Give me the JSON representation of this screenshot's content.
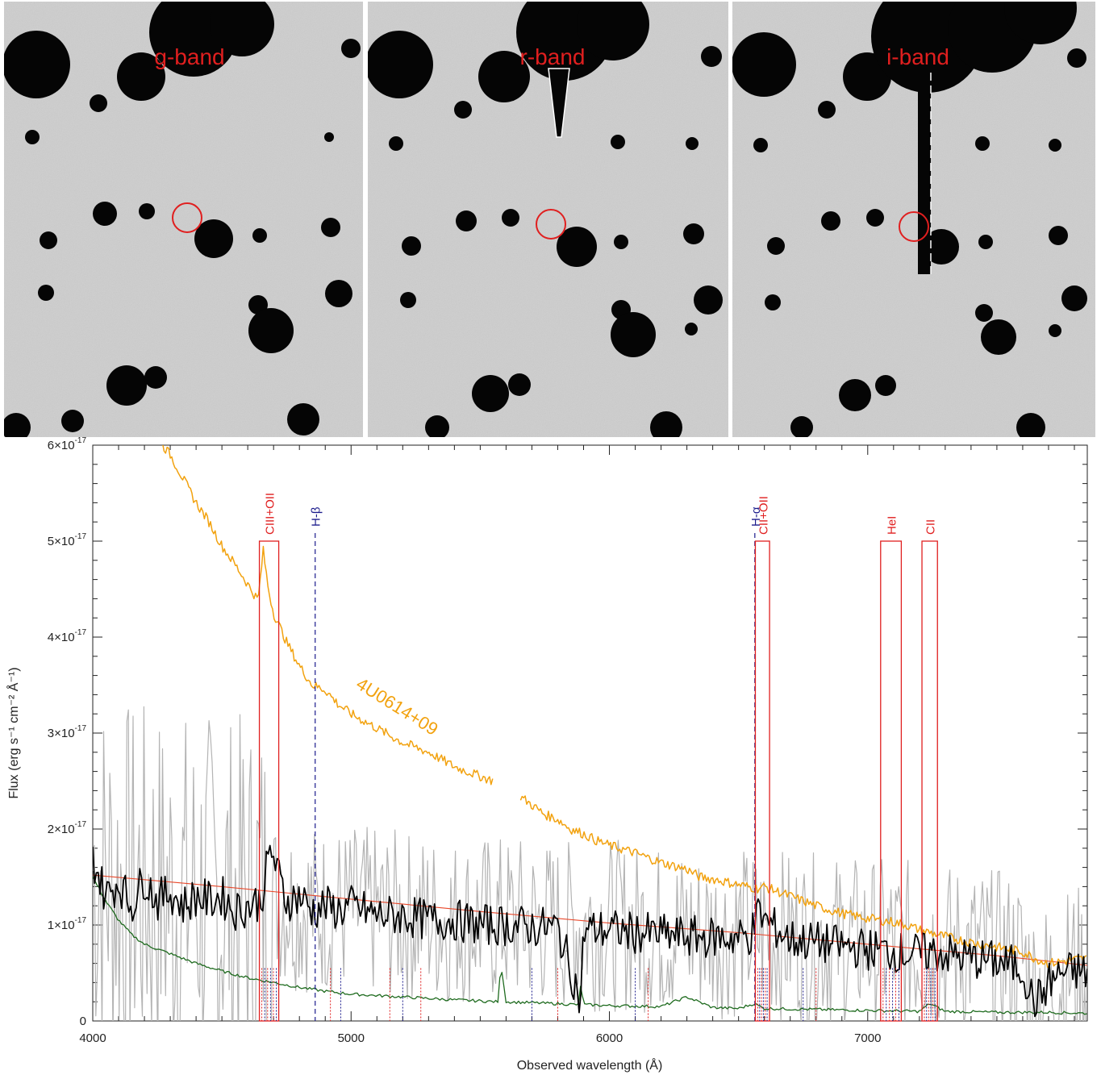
{
  "figure": {
    "panels": [
      {
        "band_label": "g-band"
      },
      {
        "band_label": "r-band"
      },
      {
        "band_label": "i-band"
      }
    ]
  },
  "colors": {
    "marker_circle": "#e01f1f",
    "panel_label": "#e01f1f",
    "reference_spectrum": "#f2a20f",
    "observed_smoothed": "#000000",
    "observed_raw": "#b4b4b4",
    "sky": "#1f6b1f",
    "continuum_fit": "#e8472a",
    "carbon_oxygen_lines": "#e01f1f",
    "hydrogen_lines": "#1b1b8c"
  },
  "chart_data": {
    "type": "line",
    "xlabel": "Observed wavelength (Å)",
    "ylabel": "Flux (erg s⁻¹ cm⁻² Å⁻¹)",
    "xlim": [
      4000,
      7850
    ],
    "ylim": [
      0,
      6e-17
    ],
    "x_ticks": [
      4000,
      5000,
      6000,
      7000
    ],
    "x_tick_labels": [
      "4000",
      "5000",
      "6000",
      "7000"
    ],
    "y_ticks": [
      0,
      1e-17,
      2e-17,
      3e-17,
      4e-17,
      5e-17,
      6e-17
    ],
    "y_tick_labels": [
      {
        "mantissa": "0",
        "exp": ""
      },
      {
        "mantissa": "1×10",
        "exp": "-17"
      },
      {
        "mantissa": "2×10",
        "exp": "-17"
      },
      {
        "mantissa": "3×10",
        "exp": "-17"
      },
      {
        "mantissa": "4×10",
        "exp": "-17"
      },
      {
        "mantissa": "5×10",
        "exp": "-17"
      },
      {
        "mantissa": "6×10",
        "exp": "-17"
      }
    ],
    "series_annotation": "4U0614+09",
    "series": [
      {
        "name": "4U0614+09",
        "style": "reference",
        "x": [
          4270,
          4300,
          4350,
          4400,
          4450,
          4500,
          4560,
          4600,
          4640,
          4660,
          4680,
          4700,
          4750,
          4800,
          4850,
          4900,
          4950,
          5000,
          5100,
          5200,
          5300,
          5400,
          5500,
          5550,
          5600,
          5650,
          5700,
          5750,
          5800,
          5850,
          5900,
          5950,
          6000,
          6100,
          6200,
          6300,
          6350,
          6400,
          6500,
          6570,
          6600,
          6700,
          6800,
          6900,
          7000,
          7100,
          7150,
          7200,
          7300,
          7400,
          7500,
          7600,
          7650,
          7700,
          7750,
          7800,
          7850
        ],
        "y": [
          6e-17,
          5.9e-17,
          5.65e-17,
          5.4e-17,
          5.2e-17,
          4.95e-17,
          4.72e-17,
          4.55e-17,
          4.38e-17,
          4.9e-17,
          4.5e-17,
          4.25e-17,
          3.95e-17,
          3.7e-17,
          3.5e-17,
          3.45e-17,
          3.3e-17,
          3.2e-17,
          3.05e-17,
          2.9e-17,
          2.8e-17,
          2.65e-17,
          2.55e-17,
          2.5e-17,
          null,
          2.35e-17,
          2.25e-17,
          2.15e-17,
          2.1e-17,
          2e-17,
          1.95e-17,
          1.88e-17,
          1.83e-17,
          1.75e-17,
          1.65e-17,
          1.58e-17,
          1.5e-17,
          1.48e-17,
          1.42e-17,
          1.38e-17,
          1.4e-17,
          1.3e-17,
          1.2e-17,
          1.12e-17,
          1.07e-17,
          1.03e-17,
          1e-17,
          9.5e-18,
          8.8e-18,
          8.2e-18,
          7.7e-18,
          7.2e-18,
          6.5e-18,
          6e-18,
          6.2e-18,
          6.4e-18,
          6.5e-18
        ]
      },
      {
        "name": "",
        "style": "raw",
        "x": [
          4000,
          4100,
          4200,
          4300,
          4400,
          4500,
          4600,
          4700,
          4800,
          4900,
          5000,
          5200,
          5400,
          5600,
          5800,
          6000,
          6200,
          6400,
          6600,
          6800,
          7000,
          7200,
          7400,
          7600,
          7650,
          7700,
          7800,
          7850
        ],
        "y": [
          1.6e-17,
          1.4e-17,
          1.35e-17,
          1.3e-17,
          1.3e-17,
          1.25e-17,
          1.25e-17,
          1.3e-17,
          1.2e-17,
          1.15e-17,
          1.15e-17,
          1.1e-17,
          1.05e-17,
          1.05e-17,
          1e-17,
          1e-17,
          9.5e-18,
          9.2e-18,
          9.2e-18,
          8.5e-18,
          8.2e-18,
          7.8e-18,
          7.4e-18,
          6.5e-18,
          3e-18,
          4e-18,
          5.5e-18,
          5e-18
        ]
      },
      {
        "name": "",
        "style": "smoothed",
        "x": [
          4000,
          4050,
          4100,
          4150,
          4200,
          4250,
          4300,
          4350,
          4400,
          4450,
          4500,
          4550,
          4600,
          4650,
          4690,
          4720,
          4750,
          4800,
          4850,
          4900,
          4950,
          5000,
          5100,
          5200,
          5300,
          5400,
          5500,
          5600,
          5700,
          5800,
          5890,
          5900,
          6000,
          6100,
          6200,
          6300,
          6400,
          6500,
          6550,
          6580,
          6600,
          6700,
          6800,
          6900,
          7000,
          7100,
          7200,
          7250,
          7300,
          7400,
          7500,
          7600,
          7640,
          7670,
          7700,
          7750,
          7800,
          7850
        ],
        "y": [
          1.7e-17,
          1.3e-17,
          1.45e-17,
          1.2e-17,
          1.5e-17,
          1.25e-17,
          1.35e-17,
          1.2e-17,
          1.3e-17,
          1.25e-17,
          1.3e-17,
          1.15e-17,
          1.2e-17,
          1.25e-17,
          1.8e-17,
          1.5e-17,
          1.25e-17,
          1.3e-17,
          1.15e-17,
          1.2e-17,
          1.15e-17,
          1.2e-17,
          1.1e-17,
          1.1e-17,
          1.05e-17,
          1.05e-17,
          1e-17,
          1e-17,
          9.8e-18,
          9.7e-18,
          2e-18,
          9.5e-18,
          9.5e-18,
          9.2e-18,
          9e-18,
          8.8e-18,
          8.7e-18,
          8.7e-18,
          9e-18,
          1.15e-17,
          1.05e-17,
          8.5e-18,
          8.2e-18,
          7.8e-18,
          7.5e-18,
          7.2e-18,
          7e-18,
          7.2e-18,
          7e-18,
          6.5e-18,
          6.2e-18,
          5.5e-18,
          2e-18,
          2.5e-18,
          4e-18,
          5e-18,
          5.2e-18,
          5e-18
        ]
      },
      {
        "name": "",
        "style": "sky",
        "x": [
          4000,
          4050,
          4100,
          4150,
          4200,
          4300,
          4400,
          4500,
          4600,
          4700,
          4800,
          4900,
          5000,
          5200,
          5400,
          5570,
          5580,
          5600,
          5800,
          5880,
          5890,
          5900,
          6000,
          6200,
          6300,
          6400,
          6500,
          6560,
          6600,
          6800,
          7000,
          7200,
          7240,
          7300,
          7500,
          7700,
          7850
        ],
        "y": [
          1.5e-17,
          1.25e-17,
          1.05e-17,
          9e-18,
          8e-18,
          7e-18,
          6e-18,
          5.2e-18,
          4.5e-18,
          4e-18,
          3.5e-18,
          3.1e-18,
          2.8e-18,
          2.5e-18,
          2.2e-18,
          2e-18,
          6e-18,
          2e-18,
          1.8e-18,
          1.7e-18,
          4e-18,
          1.7e-18,
          1.6e-18,
          1.5e-18,
          2.5e-18,
          1.4e-18,
          1.3e-18,
          1.8e-18,
          1.3e-18,
          1.2e-18,
          1.1e-18,
          1e-18,
          1.8e-18,
          1e-18,
          9e-19,
          9e-19,
          8e-19
        ]
      },
      {
        "name": "",
        "style": "fit",
        "x": [
          4000,
          4500,
          5000,
          5500,
          6000,
          6500,
          7000,
          7500,
          7850
        ],
        "y": [
          1.52e-17,
          1.4e-17,
          1.27e-17,
          1.14e-17,
          1.02e-17,
          9.2e-18,
          8e-18,
          6.8e-18,
          5.8e-18
        ]
      }
    ],
    "line_markers": [
      {
        "label": "CIII+OII",
        "x_start": 4645,
        "x_end": 4720,
        "type": "box"
      },
      {
        "label": "H-β",
        "x": 4861,
        "type": "dashed"
      },
      {
        "label": "H-α",
        "x": 6563,
        "type": "dashed"
      },
      {
        "label": "CII+OII",
        "x_start": 6565,
        "x_end": 6620,
        "type": "box"
      },
      {
        "label": "HeI",
        "x_start": 7050,
        "x_end": 7130,
        "type": "box"
      },
      {
        "label": "CII",
        "x_start": 7210,
        "x_end": 7270,
        "type": "box"
      }
    ]
  }
}
